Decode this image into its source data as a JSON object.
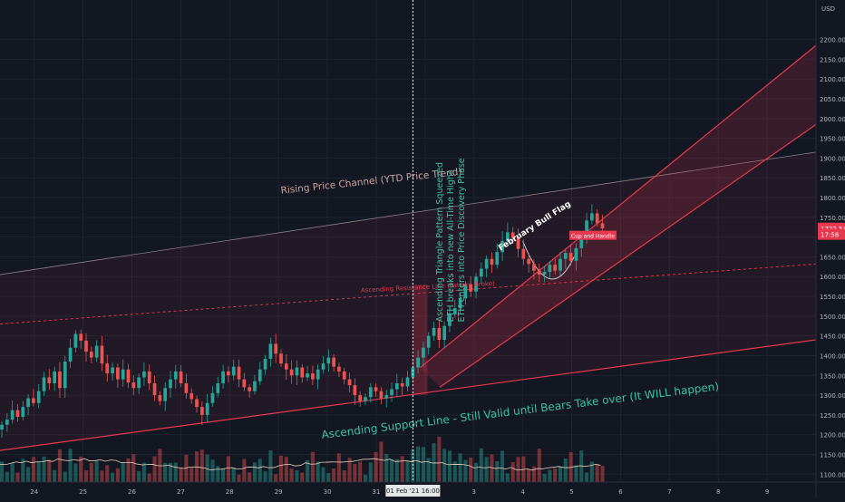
{
  "chart_data": {
    "type": "candlestick",
    "currency_label": "USD",
    "x_ticks": [
      "24",
      "25",
      "26",
      "27",
      "28",
      "29",
      "30",
      "31",
      "Feb",
      "3",
      "4",
      "5",
      "6",
      "7",
      "8",
      "9"
    ],
    "y_ticks": [
      1100,
      1150,
      1200,
      1250,
      1300,
      1350,
      1400,
      1450,
      1500,
      1550,
      1600,
      1650,
      1700,
      1750,
      1800,
      1850,
      1900,
      1950,
      2000,
      2050,
      2100,
      2150,
      2200
    ],
    "ylim": [
      1080,
      2300
    ],
    "xlim": [
      23.3,
      40.0
    ],
    "crosshair": {
      "x": 31.75,
      "label": "01 Feb '21   16:00"
    },
    "price_badges": [
      {
        "value": 1722.54,
        "label": "1722.54",
        "color": "#e63950"
      },
      {
        "value": 1707,
        "label": "17:58",
        "color": "#e63950"
      }
    ],
    "candles_close": [
      1225,
      1238,
      1262,
      1245,
      1270,
      1292,
      1280,
      1310,
      1345,
      1330,
      1360,
      1318,
      1385,
      1420,
      1455,
      1438,
      1410,
      1395,
      1425,
      1380,
      1355,
      1370,
      1340,
      1365,
      1332,
      1318,
      1345,
      1360,
      1330,
      1300,
      1285,
      1318,
      1340,
      1360,
      1330,
      1305,
      1290,
      1270,
      1250,
      1280,
      1305,
      1330,
      1360,
      1350,
      1372,
      1340,
      1320,
      1310,
      1335,
      1365,
      1392,
      1430,
      1405,
      1380,
      1365,
      1350,
      1370,
      1345,
      1355,
      1340,
      1365,
      1380,
      1395,
      1372,
      1360,
      1340,
      1325,
      1300,
      1285,
      1295,
      1320,
      1310,
      1292,
      1300,
      1315,
      1330,
      1322,
      1345,
      1370,
      1395,
      1420,
      1450,
      1470,
      1440,
      1475,
      1505,
      1520,
      1545,
      1580,
      1562,
      1600,
      1620,
      1645,
      1630,
      1662,
      1690,
      1712,
      1698,
      1670,
      1645,
      1632,
      1615,
      1605,
      1612,
      1630,
      1615,
      1645,
      1660,
      1640,
      1672,
      1698,
      1742,
      1760,
      1735,
      1722
    ],
    "annotations": [
      {
        "text": "Rising Price Channel (YTD Price Trend)",
        "color": "#c9a5a0"
      },
      {
        "text": "February Bull Flag",
        "color": "#ffffff"
      },
      {
        "text": "Cup and Handle",
        "color": "#ffffff",
        "bg": "#e63950"
      },
      {
        "text": "Ascending Resistance Line (Pattern Broke)",
        "color": "#e63950"
      },
      {
        "text": "Ascending Support Line - Still Valid until Bears Take over (It WILL happen)",
        "color": "#3cc3a3"
      },
      {
        "text": "Ascending Triangle Pattern Squeezed",
        "color": "#3cc3a3"
      },
      {
        "text": "ETH breaks into new All-Time Highs",
        "color": "#3cc3a3"
      },
      {
        "text": "ETH enters into Price Discovery Phase",
        "color": "#3cc3a3"
      }
    ],
    "colors": {
      "background": "#131722",
      "up": "#26a69a",
      "down": "#ef5350",
      "channel": "#e63950",
      "volume_ma": "#e8cfc0"
    }
  }
}
